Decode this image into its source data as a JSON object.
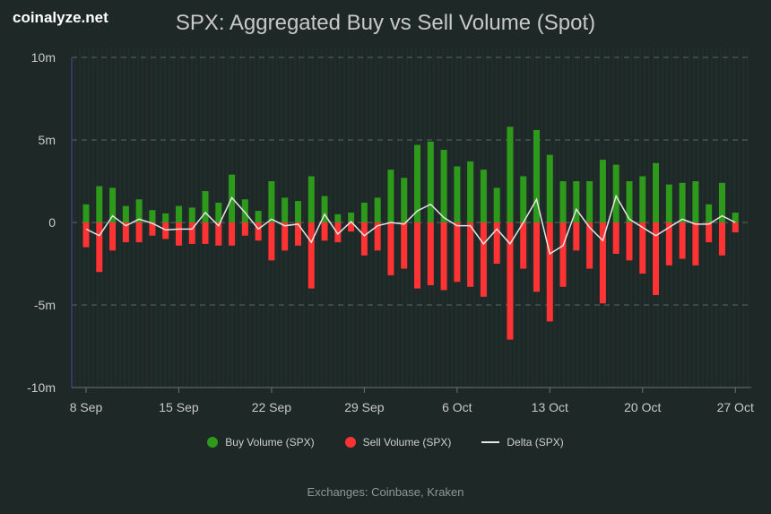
{
  "logo": "coinalyze.net",
  "chart_data": {
    "type": "bar",
    "title": "SPX: Aggregated Buy vs Sell Volume (Spot)",
    "footer": "Exchanges: Coinbase, Kraken",
    "ylim": [
      -10000000,
      10000000
    ],
    "y_ticks": [
      {
        "v": 10000000,
        "label": "10m"
      },
      {
        "v": 5000000,
        "label": "5m"
      },
      {
        "v": 0,
        "label": "0"
      },
      {
        "v": -5000000,
        "label": "-5m"
      },
      {
        "v": -10000000,
        "label": "-10m"
      }
    ],
    "x_tick_labels": [
      "8 Sep",
      "15 Sep",
      "22 Sep",
      "29 Sep",
      "6 Oct",
      "13 Oct",
      "20 Oct",
      "27 Oct"
    ],
    "x_tick_every_days": 7,
    "grid": true,
    "legend_position": "bottom",
    "colors": {
      "buy": "#2e9a1c",
      "sell": "#ff3333",
      "delta": "#e6e6e6"
    },
    "series": [
      {
        "name": "Buy Volume (SPX)",
        "unit": "m",
        "values": [
          1.1,
          2.2,
          2.1,
          1.0,
          1.4,
          0.75,
          0.55,
          1.0,
          0.9,
          1.9,
          1.2,
          2.9,
          1.4,
          0.7,
          2.5,
          1.5,
          1.3,
          2.8,
          1.6,
          0.5,
          0.6,
          1.2,
          1.5,
          3.2,
          2.7,
          4.7,
          4.9,
          4.4,
          3.4,
          3.7,
          3.2,
          2.1,
          5.8,
          2.8,
          5.6,
          4.1,
          2.5,
          2.5,
          2.5,
          3.8,
          3.5,
          2.5,
          2.8,
          3.6,
          2.3,
          2.4,
          2.5,
          1.1,
          2.4,
          0.6
        ]
      },
      {
        "name": "Sell Volume (SPX)",
        "unit": "m",
        "values": [
          -1.5,
          -3.0,
          -1.7,
          -1.2,
          -1.2,
          -0.8,
          -1.0,
          -1.4,
          -1.3,
          -1.3,
          -1.4,
          -1.4,
          -0.8,
          -1.1,
          -2.3,
          -1.7,
          -1.4,
          -4.0,
          -1.1,
          -1.2,
          -0.55,
          -2.0,
          -1.7,
          -3.2,
          -2.8,
          -4.0,
          -3.8,
          -4.1,
          -3.6,
          -3.9,
          -4.5,
          -2.5,
          -7.1,
          -2.8,
          -4.2,
          -6.0,
          -3.9,
          -1.7,
          -2.8,
          -4.9,
          -1.9,
          -2.3,
          -3.1,
          -4.4,
          -2.6,
          -2.2,
          -2.6,
          -1.2,
          -2.0,
          -0.6
        ]
      },
      {
        "name": "Delta (SPX)",
        "unit": "m",
        "values": [
          -0.4,
          -0.8,
          0.4,
          -0.2,
          0.2,
          -0.05,
          -0.45,
          -0.4,
          -0.4,
          0.6,
          -0.2,
          1.5,
          0.6,
          -0.4,
          0.2,
          -0.2,
          -0.1,
          -1.2,
          0.5,
          -0.7,
          0.05,
          -0.8,
          -0.2,
          0.0,
          -0.1,
          0.7,
          1.1,
          0.3,
          -0.2,
          -0.2,
          -1.3,
          -0.4,
          -1.3,
          0.0,
          1.4,
          -1.9,
          -1.4,
          0.8,
          -0.3,
          -1.1,
          1.6,
          0.2,
          -0.3,
          -0.8,
          -0.3,
          0.2,
          -0.1,
          -0.1,
          0.4,
          0.0
        ]
      }
    ]
  }
}
